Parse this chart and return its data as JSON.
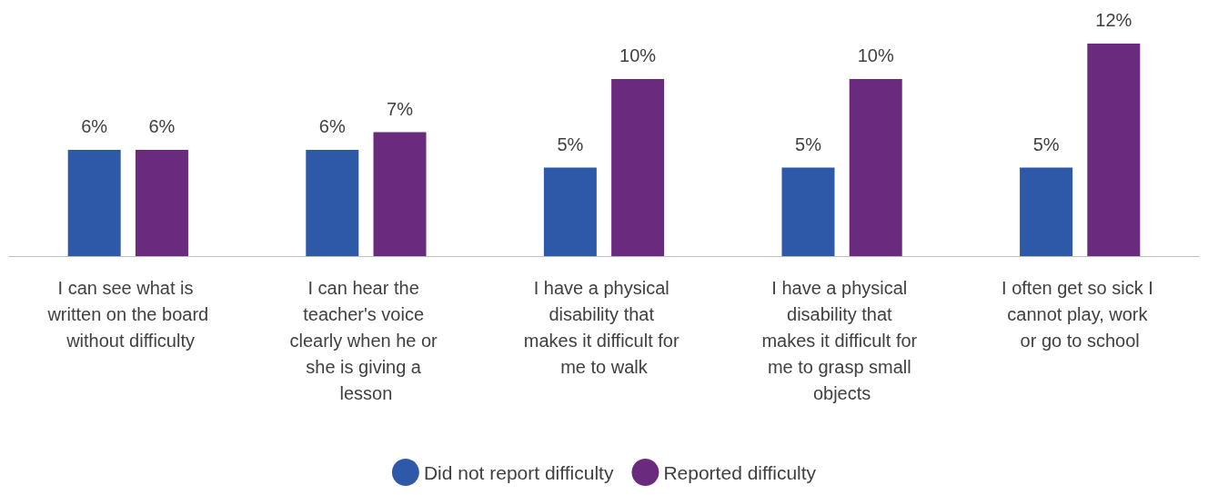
{
  "chart_data": {
    "type": "bar",
    "categories": [
      "I can see what is written on the board without difficulty",
      "I can hear the teacher's voice clearly when he or she is giving a lesson",
      "I have a physical disability that makes it difficult for me to walk",
      "I have a physical disability that makes it difficult for me to grasp small objects",
      "I often get so sick I cannot play, work or go to school"
    ],
    "series": [
      {
        "name": "Did not report difficulty",
        "color": "#2e59a8",
        "values": [
          6,
          6,
          5,
          5,
          5
        ],
        "value_labels": [
          "6%",
          "6%",
          "5%",
          "5%",
          "5%"
        ]
      },
      {
        "name": "Reported difficulty",
        "color": "#6a2a7e",
        "values": [
          6,
          7,
          10,
          10,
          12
        ],
        "value_labels": [
          "6%",
          "7%",
          "10%",
          "10%",
          "12%"
        ]
      }
    ],
    "legend": "bottom"
  }
}
